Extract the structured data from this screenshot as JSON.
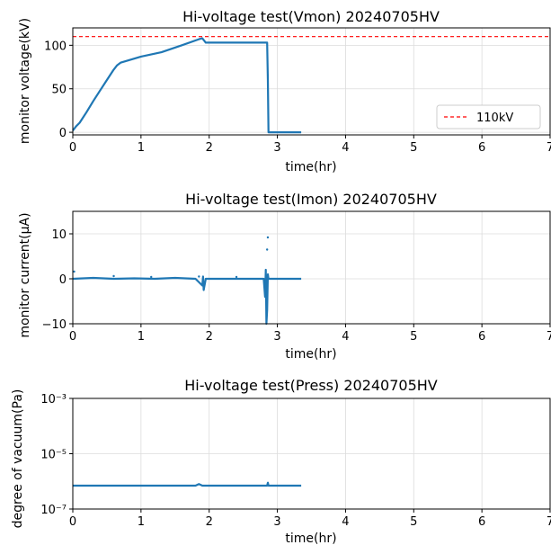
{
  "chart_data": [
    {
      "type": "line",
      "title": "Hi-voltage test(Vmon) 20240705HV",
      "xlabel": "time(hr)",
      "ylabel": "monitor voltage(kV)",
      "xlim": [
        0,
        7
      ],
      "ylim": [
        -3,
        120
      ],
      "x_ticks": [
        "0",
        "1",
        "2",
        "3",
        "4",
        "5",
        "6",
        "7"
      ],
      "y_ticks": [
        "0",
        "50",
        "100"
      ],
      "grid": true,
      "legend": "bottom-right",
      "series": [
        {
          "color": "#1f77b4",
          "x": [
            0,
            0.05,
            0.1,
            0.2,
            0.3,
            0.4,
            0.5,
            0.6,
            0.65,
            0.7,
            1.0,
            1.3,
            1.6,
            1.85,
            1.9,
            1.95,
            2.85,
            2.86,
            2.87,
            3.35
          ],
          "y": [
            2,
            7,
            11,
            23,
            36,
            48,
            60,
            72,
            77,
            80,
            87,
            92,
            100,
            107,
            108,
            103,
            103,
            60,
            0,
            0
          ]
        },
        {
          "name": "110kV",
          "style": "dashed",
          "color": "#ff0000",
          "x": [
            0,
            7
          ],
          "y": [
            110,
            110
          ]
        }
      ]
    },
    {
      "type": "line",
      "title": "Hi-voltage test(Imon) 20240705HV",
      "xlabel": "time(hr)",
      "ylabel": "monitor current(μA)",
      "xlim": [
        0,
        7
      ],
      "ylim": [
        -10,
        15
      ],
      "x_ticks": [
        "0",
        "1",
        "2",
        "3",
        "4",
        "5",
        "6",
        "7"
      ],
      "y_ticks": [
        "−10",
        "0",
        "10"
      ],
      "grid": true,
      "series": [
        {
          "color": "#1f77b4",
          "x": [
            0,
            0.3,
            0.6,
            0.9,
            1.2,
            1.5,
            1.8,
            1.9,
            1.91,
            1.92,
            1.95,
            2.4,
            2.8,
            2.82,
            2.83,
            2.84,
            2.85,
            2.86,
            2.87,
            3.35
          ],
          "y": [
            0,
            0.2,
            0,
            0.1,
            0,
            0.2,
            0,
            -1.5,
            0.5,
            -2.5,
            0,
            0,
            0,
            -4,
            2,
            -10,
            -7,
            1,
            0,
            0
          ]
        },
        {
          "type": "scatter",
          "color": "#1f77b4",
          "x": [
            0.02,
            0.6,
            1.15,
            1.85,
            2.4,
            2.86,
            2.85
          ],
          "y": [
            1.6,
            0.6,
            0.4,
            0.5,
            0.4,
            9.2,
            6.5
          ]
        }
      ]
    },
    {
      "type": "line",
      "title": "Hi-voltage test(Press) 20240705HV",
      "xlabel": "time(hr)",
      "ylabel": "degree of vacuum(Pa)",
      "xlim": [
        0,
        7
      ],
      "ylim_log10": [
        -7,
        -3
      ],
      "log_scale": true,
      "x_ticks": [
        "0",
        "1",
        "2",
        "3",
        "4",
        "5",
        "6",
        "7"
      ],
      "y_ticks": [
        "10⁻³",
        "10⁻⁵",
        "10⁻⁷"
      ],
      "grid": true,
      "series": [
        {
          "color": "#1f77b4",
          "x": [
            0,
            1.8,
            1.85,
            1.9,
            2.0,
            2.85,
            2.86,
            2.87,
            3.35
          ],
          "y": [
            7e-07,
            7e-07,
            8e-07,
            7e-07,
            7e-07,
            7e-07,
            9e-07,
            7e-07,
            7e-07
          ]
        }
      ]
    }
  ]
}
